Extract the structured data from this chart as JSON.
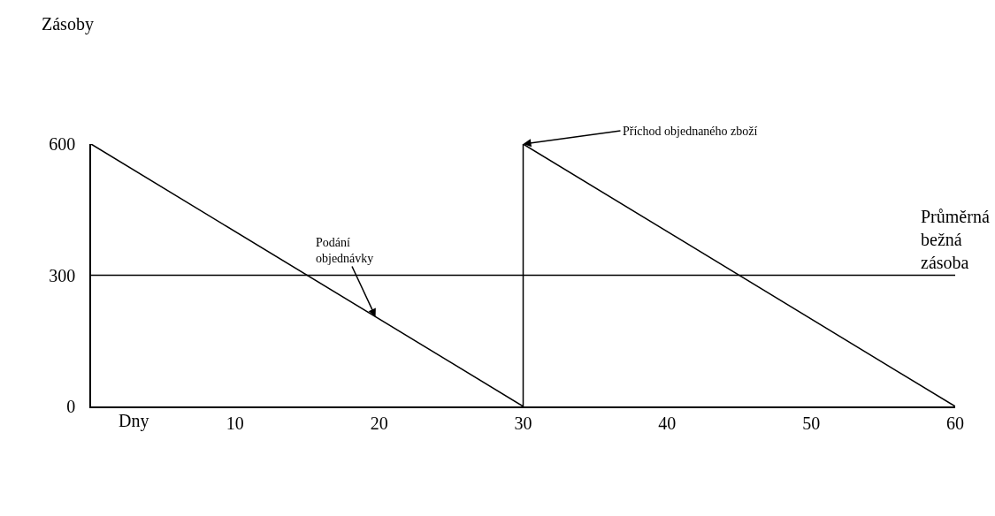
{
  "chart_data": {
    "type": "line",
    "xlabel": "Dny",
    "x": [
      0,
      30,
      30,
      60
    ],
    "series": [
      {
        "color": "#000000",
        "values": [
          600,
          0,
          600,
          0
        ]
      }
    ],
    "xlim": [
      0,
      60
    ],
    "xticks": [
      10,
      20,
      30,
      40,
      50,
      60
    ],
    "ylim": [
      0,
      600
    ],
    "yticks": [
      0,
      300,
      600
    ],
    "ref_lines": [
      {
        "axis": "y",
        "value": 300,
        "label": "Průměrná\nbežná\nzásoba",
        "color": "#000000"
      }
    ],
    "annotations": [
      "Zásoby",
      {
        "text": "Podání\nobjednávky",
        "x": 19.75,
        "y": 205
      },
      {
        "text": "Příchod objednaného zboží",
        "x": 30,
        "y": 600
      }
    ],
    "grid": false,
    "legend": false,
    "marker": "none",
    "line_style": "solid"
  }
}
